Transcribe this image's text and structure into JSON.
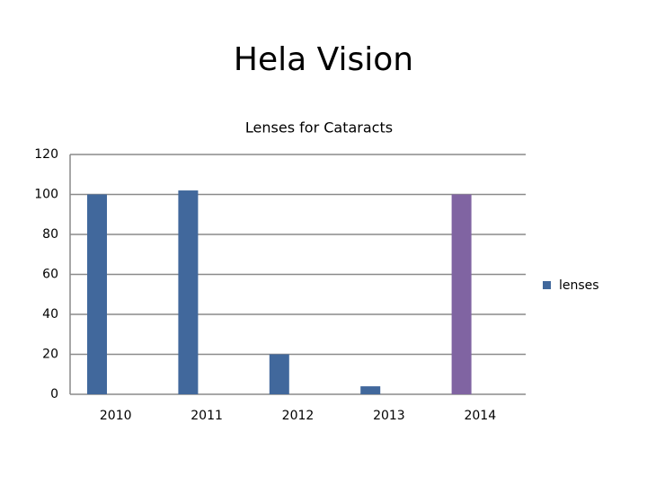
{
  "slide": {
    "title": "Hela Vision"
  },
  "chart_data": {
    "type": "bar",
    "title": "Lenses for Cataracts",
    "categories": [
      "2010",
      "2011",
      "2012",
      "2013",
      "2014"
    ],
    "series": [
      {
        "name": "lenses",
        "color": "#41689c",
        "values": [
          100,
          102,
          20,
          4,
          100
        ],
        "colors": [
          "#41689c",
          "#41689c",
          "#41689c",
          "#41689c",
          "#8064a2"
        ]
      }
    ],
    "ylim": [
      0,
      120
    ],
    "yticks": [
      0,
      20,
      40,
      60,
      80,
      100,
      120
    ],
    "grid": true,
    "legend": "right"
  }
}
